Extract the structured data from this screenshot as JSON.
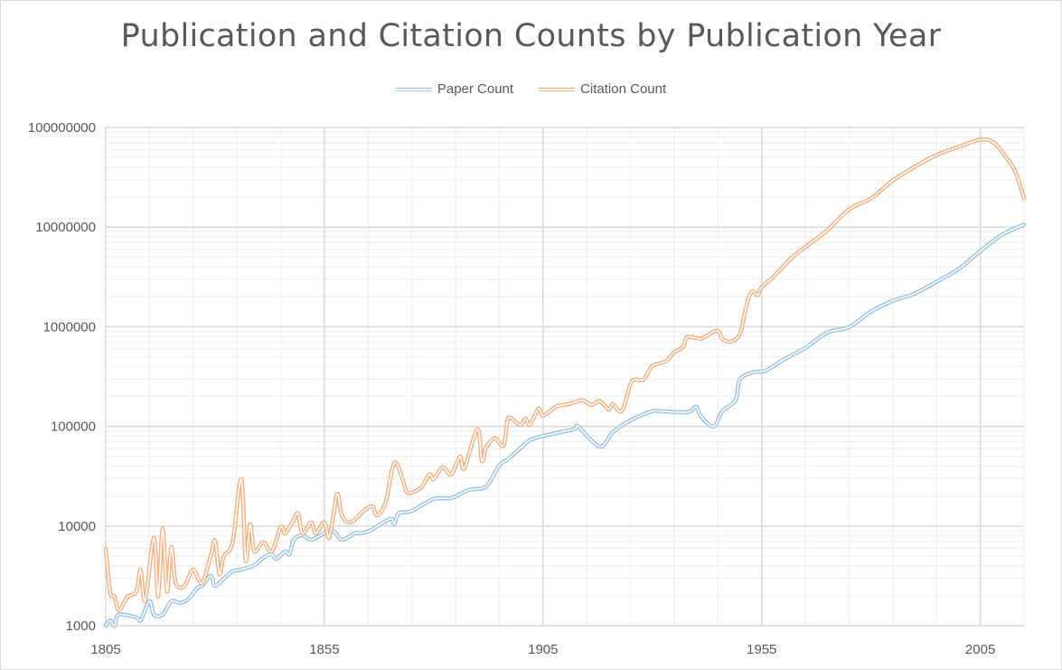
{
  "chart_data": {
    "type": "line",
    "title": "Publication and Citation Counts by Publication Year",
    "xlabel": "",
    "ylabel": "",
    "xlim": [
      1805,
      2015
    ],
    "ylim": [
      1000,
      100000000
    ],
    "y_scale": "log",
    "grid": true,
    "legend_position": "top",
    "x_ticks": [
      "1805",
      "1855",
      "1905",
      "1955",
      "2005"
    ],
    "y_ticks": [
      "1000",
      "10000",
      "100000",
      "1000000",
      "10000000",
      "100000000"
    ],
    "colors": {
      "Paper Count": "#9dc3e6",
      "Citation Count": "#f4b183",
      "grid_major": "#d9d9d9",
      "grid_minor": "#f2f2f2",
      "text": "#595959"
    },
    "series": [
      {
        "name": "Paper Count",
        "x": [
          1805,
          1806,
          1807,
          1808,
          1812,
          1813,
          1815,
          1816,
          1818,
          1820,
          1822,
          1824,
          1826,
          1827,
          1829,
          1830,
          1832,
          1834,
          1836,
          1839,
          1841,
          1843,
          1844,
          1846,
          1847,
          1848,
          1850,
          1852,
          1855,
          1857,
          1859,
          1862,
          1865,
          1870,
          1871,
          1872,
          1875,
          1880,
          1884,
          1888,
          1892,
          1895,
          1897,
          1900,
          1903,
          1912,
          1913,
          1918,
          1921,
          1925,
          1930,
          1932,
          1938,
          1940,
          1941,
          1944,
          1946,
          1949,
          1950,
          1953,
          1956,
          1960,
          1965,
          1970,
          1975,
          1980,
          1985,
          1990,
          1995,
          2000,
          2005,
          2010,
          2015
        ],
        "values": [
          1000,
          1130,
          1000,
          1290,
          1210,
          1130,
          1760,
          1290,
          1290,
          1760,
          1690,
          1870,
          2410,
          2510,
          3160,
          2510,
          2970,
          3510,
          3660,
          4060,
          4800,
          5220,
          4700,
          5560,
          5220,
          7290,
          8090,
          7290,
          8440,
          8990,
          7290,
          8440,
          8810,
          11800,
          10400,
          13400,
          14200,
          18700,
          19100,
          23000,
          25000,
          40500,
          46900,
          61500,
          75900,
          93500,
          99600,
          62800,
          87800,
          115000,
          142000,
          142000,
          139000,
          158000,
          128000,
          99600,
          142000,
          183000,
          295000,
          349000,
          364000,
          468000,
          614000,
          875000,
          993000,
          1420000,
          1820000,
          2150000,
          2830000,
          3790000,
          5750000,
          8390000,
          10600000
        ]
      },
      {
        "name": "Citation Count",
        "x": [
          1805,
          1806,
          1807,
          1808,
          1810,
          1812,
          1813,
          1814,
          1816,
          1817,
          1818,
          1819,
          1820,
          1821,
          1823,
          1825,
          1827,
          1829,
          1830,
          1831,
          1832,
          1834,
          1836,
          1837,
          1838,
          1839,
          1841,
          1843,
          1845,
          1846,
          1847,
          1848,
          1849,
          1850,
          1852,
          1853,
          1855,
          1856,
          1857,
          1858,
          1859,
          1861,
          1864,
          1866,
          1867,
          1869,
          1871,
          1873,
          1874,
          1877,
          1879,
          1880,
          1882,
          1884,
          1886,
          1887,
          1890,
          1891,
          1892,
          1894,
          1896,
          1897,
          1899,
          1900,
          1901,
          1902,
          1904,
          1905,
          1908,
          1911,
          1914,
          1916,
          1918,
          1920,
          1921,
          1923,
          1925,
          1926,
          1928,
          1930,
          1933,
          1935,
          1937,
          1938,
          1941,
          1943,
          1945,
          1946,
          1948,
          1950,
          1951,
          1952,
          1953,
          1954,
          1955,
          1958,
          1962,
          1966,
          1970,
          1975,
          1980,
          1985,
          1990,
          1995,
          2000,
          2005,
          2008,
          2011,
          2013,
          2015
        ],
        "values": [
          5900,
          2200,
          1950,
          1430,
          1950,
          2200,
          3660,
          1760,
          7600,
          1950,
          9370,
          2200,
          6170,
          2670,
          2510,
          3660,
          2670,
          5000,
          7140,
          3290,
          5000,
          6850,
          29600,
          4510,
          10400,
          5560,
          6850,
          5560,
          9770,
          8440,
          9770,
          11500,
          13400,
          8440,
          10900,
          8440,
          10900,
          7600,
          12300,
          21200,
          12800,
          10900,
          14200,
          15800,
          12800,
          17200,
          43100,
          28400,
          21600,
          24000,
          32900,
          29600,
          38800,
          32900,
          49900,
          38000,
          93500,
          45000,
          61500,
          75900,
          64200,
          120000,
          108000,
          104000,
          120000,
          104000,
          151000,
          128000,
          158000,
          168000,
          183000,
          164000,
          179000,
          148000,
          168000,
          142000,
          266000,
          295000,
          295000,
          405000,
          449000,
          553000,
          627000,
          788000,
          757000,
          841000,
          914000,
          757000,
          710000,
          841000,
          1280000,
          1940000,
          2290000,
          2070000,
          2490000,
          3270000,
          4980000,
          6810000,
          9310000,
          15100000,
          19400000,
          29500000,
          40300000,
          52900000,
          63800000,
          75400000,
          70800000,
          49600000,
          36300000,
          19400000
        ]
      }
    ]
  }
}
